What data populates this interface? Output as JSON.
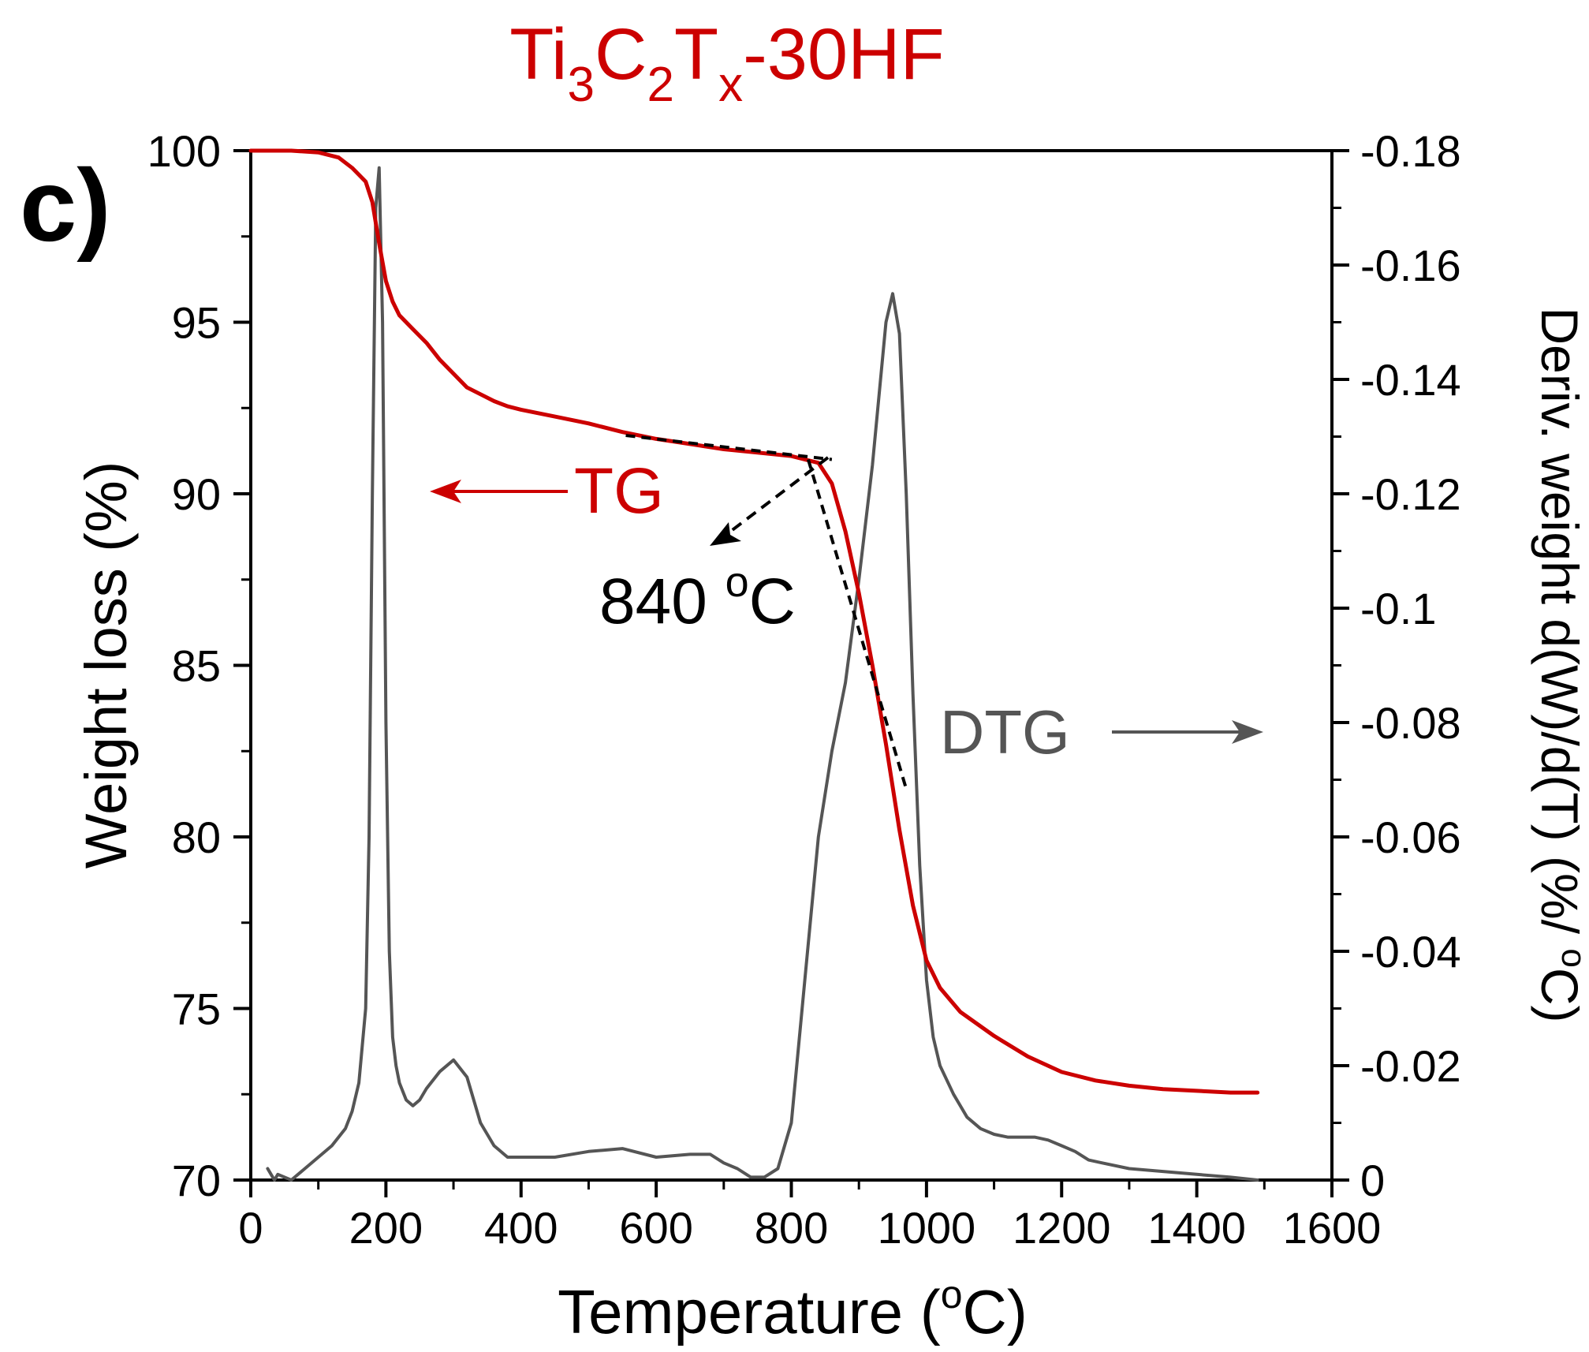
{
  "panel_label": "c)",
  "title": {
    "parts": [
      {
        "text": "Ti",
        "sub": false
      },
      {
        "text": "3",
        "sub": true
      },
      {
        "text": "C",
        "sub": false
      },
      {
        "text": "2",
        "sub": true
      },
      {
        "text": "T",
        "sub": false
      },
      {
        "text": "x",
        "sub": true
      },
      {
        "text": "-30HF",
        "sub": false
      }
    ],
    "color": "#cc0000"
  },
  "chart_data": {
    "type": "line",
    "title": "Ti3C2Tx-30HF",
    "x_axis": {
      "label_prefix": "Temperature (",
      "label_sup": "o",
      "label_suffix": "C)",
      "range": [
        0,
        1600
      ],
      "ticks": [
        0,
        200,
        400,
        600,
        800,
        1000,
        1200,
        1400,
        1600
      ]
    },
    "y_axis_left": {
      "label": "Weight loss (%)",
      "range": [
        70,
        100
      ],
      "ticks": [
        70,
        75,
        80,
        85,
        90,
        95,
        100
      ]
    },
    "y_axis_right": {
      "label_main": "Deriv. weight d(W)/d(T)  (%/ ",
      "label_sup": "o",
      "label_end": "C)",
      "range": [
        0,
        -0.18
      ],
      "ticks": [
        {
          "value": 0,
          "label": "0"
        },
        {
          "value": -0.02,
          "label": "-0.02"
        },
        {
          "value": -0.04,
          "label": "-0.04"
        },
        {
          "value": -0.06,
          "label": "-0.06"
        },
        {
          "value": -0.08,
          "label": "-0.08"
        },
        {
          "value": -0.1,
          "label": "-0.1"
        },
        {
          "value": -0.12,
          "label": "-0.12"
        },
        {
          "value": -0.14,
          "label": "-0.14"
        },
        {
          "value": -0.16,
          "label": "-0.16"
        },
        {
          "value": -0.18,
          "label": "-0.18"
        }
      ]
    },
    "grid": false,
    "series": [
      {
        "name": "TG",
        "axis": "left",
        "color": "#cc0000",
        "x": [
          0,
          60,
          100,
          130,
          150,
          170,
          180,
          190,
          200,
          210,
          220,
          240,
          260,
          280,
          300,
          320,
          340,
          360,
          380,
          400,
          450,
          500,
          550,
          600,
          650,
          700,
          750,
          800,
          840,
          860,
          880,
          900,
          920,
          940,
          960,
          980,
          1000,
          1020,
          1050,
          1100,
          1150,
          1200,
          1250,
          1300,
          1350,
          1400,
          1450,
          1490
        ],
        "y": [
          100,
          100,
          99.95,
          99.8,
          99.5,
          99.1,
          98.5,
          97.3,
          96.2,
          95.6,
          95.2,
          94.8,
          94.4,
          93.9,
          93.5,
          93.1,
          92.9,
          92.7,
          92.55,
          92.45,
          92.25,
          92.05,
          91.8,
          91.6,
          91.45,
          91.3,
          91.2,
          91.1,
          90.9,
          90.3,
          88.9,
          87.1,
          85.0,
          82.7,
          80.2,
          78.0,
          76.4,
          75.6,
          74.9,
          74.2,
          73.6,
          73.15,
          72.9,
          72.75,
          72.65,
          72.6,
          72.55,
          72.55
        ]
      },
      {
        "name": "DTG",
        "axis": "right",
        "color": "#555555",
        "x": [
          25,
          30,
          35,
          40,
          60,
          80,
          100,
          120,
          140,
          150,
          160,
          170,
          175,
          180,
          185,
          190,
          195,
          200,
          205,
          210,
          215,
          220,
          230,
          240,
          250,
          260,
          280,
          300,
          320,
          340,
          360,
          380,
          400,
          450,
          500,
          550,
          600,
          650,
          680,
          700,
          720,
          740,
          760,
          780,
          800,
          820,
          840,
          860,
          880,
          900,
          920,
          940,
          950,
          960,
          970,
          980,
          990,
          1000,
          1010,
          1020,
          1040,
          1060,
          1080,
          1100,
          1120,
          1140,
          1160,
          1180,
          1200,
          1220,
          1240,
          1260,
          1300,
          1350,
          1400,
          1450,
          1490
        ],
        "y": [
          -0.002,
          -0.001,
          0.0,
          -0.001,
          0.0,
          -0.002,
          -0.004,
          -0.006,
          -0.009,
          -0.012,
          -0.017,
          -0.03,
          -0.06,
          -0.12,
          -0.17,
          -0.177,
          -0.15,
          -0.08,
          -0.04,
          -0.025,
          -0.02,
          -0.017,
          -0.014,
          -0.013,
          -0.014,
          -0.016,
          -0.019,
          -0.021,
          -0.018,
          -0.01,
          -0.006,
          -0.004,
          -0.004,
          -0.004,
          -0.005,
          -0.0055,
          -0.004,
          -0.0045,
          -0.0045,
          -0.003,
          -0.002,
          -0.0005,
          -0.0005,
          -0.002,
          -0.01,
          -0.035,
          -0.06,
          -0.075,
          -0.087,
          -0.105,
          -0.125,
          -0.15,
          -0.155,
          -0.148,
          -0.12,
          -0.085,
          -0.055,
          -0.035,
          -0.025,
          -0.02,
          -0.015,
          -0.011,
          -0.009,
          -0.008,
          -0.0075,
          -0.0075,
          -0.0075,
          -0.007,
          -0.006,
          -0.005,
          -0.0035,
          -0.003,
          -0.002,
          -0.0015,
          -0.001,
          -0.0005,
          0.0
        ]
      }
    ],
    "tangent_lines": [
      {
        "x": [
          555,
          860
        ],
        "y": [
          91.7,
          91.0
        ]
      },
      {
        "x": [
          825,
          970
        ],
        "y": [
          91.0,
          81.4
        ]
      }
    ],
    "annotations": {
      "tg_label": "TG",
      "dtg_label": "DTG",
      "onset_value": "840 ",
      "onset_sup": "o",
      "onset_unit": "C"
    }
  }
}
